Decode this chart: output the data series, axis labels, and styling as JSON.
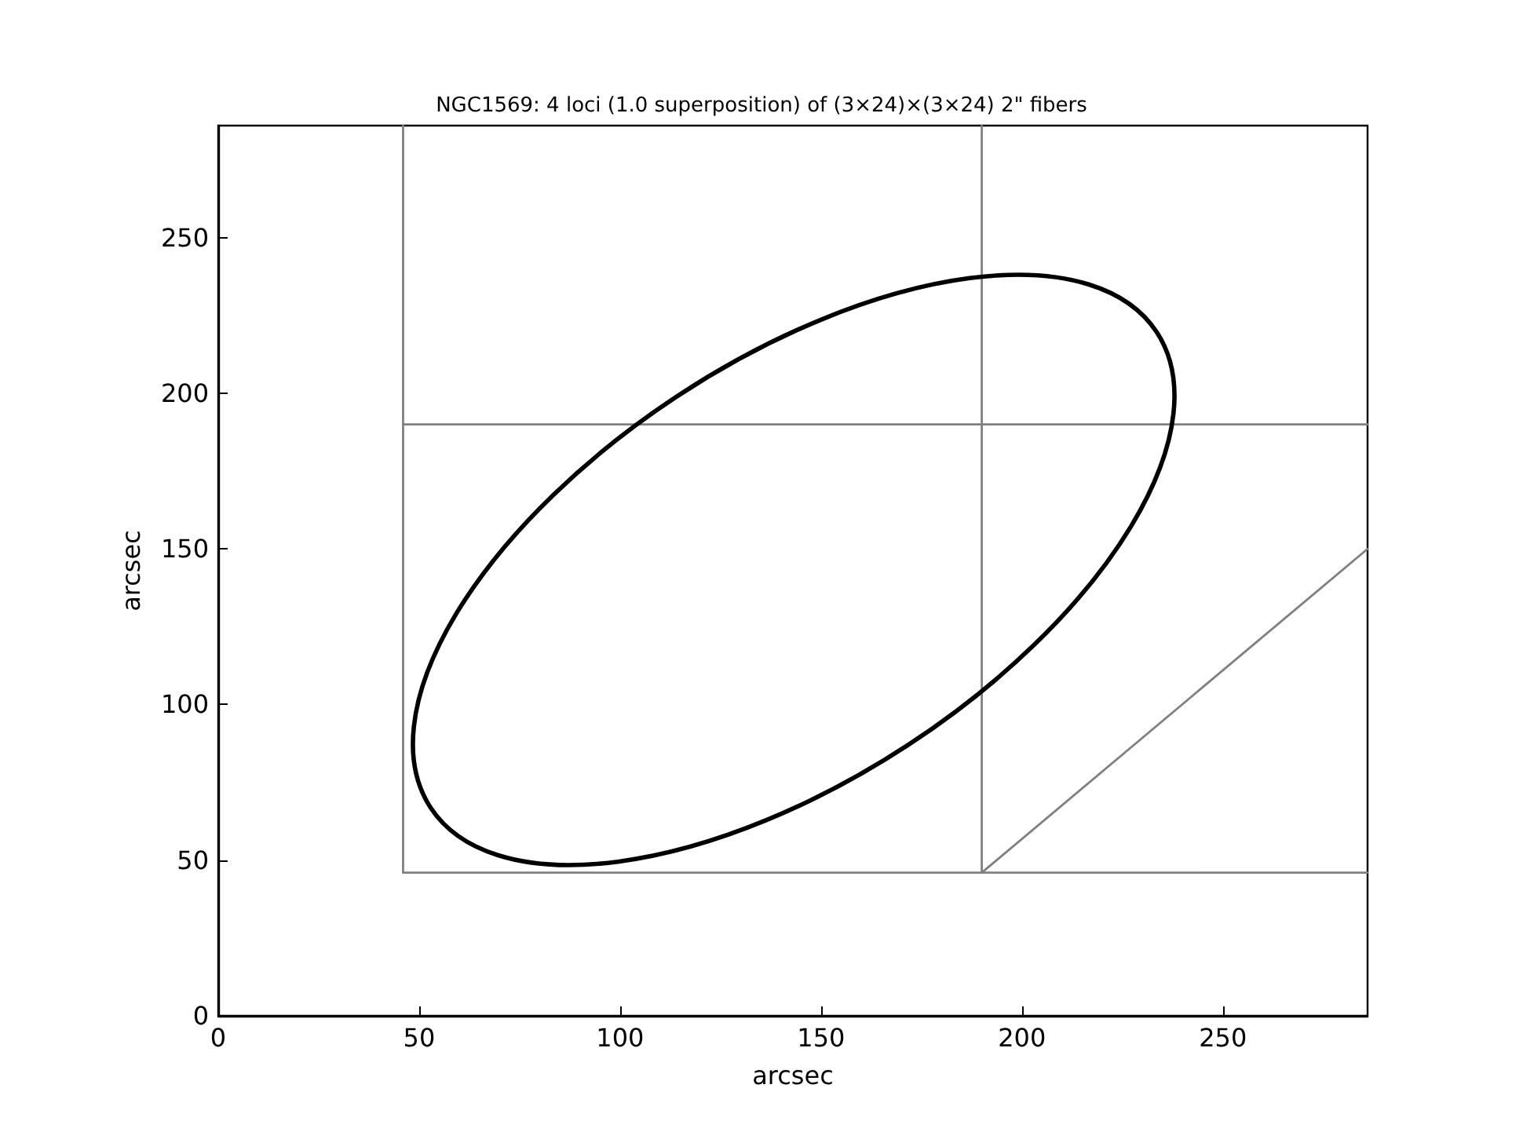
{
  "chart_data": {
    "type": "line",
    "title": "NGC1569: 4 loci (1.0 superposition) of (3×24)×(3×24) 2\" fibers",
    "xlabel": "arcsec",
    "ylabel": "arcsec",
    "xlim": [
      0,
      286
    ],
    "ylim": [
      0,
      286
    ],
    "xticks": [
      0,
      50,
      100,
      150,
      200,
      250
    ],
    "yticks": [
      0,
      50,
      100,
      150,
      200,
      250
    ],
    "grid": false,
    "marker": "none",
    "line_style": "solid",
    "series": [
      {
        "color": "#808080",
        "x": [
          46,
          46
        ],
        "values": [
          46,
          286
        ]
      },
      {
        "color": "#808080",
        "x": [
          190,
          190
        ],
        "values": [
          46,
          286
        ]
      },
      {
        "color": "#808080",
        "x": [
          46,
          286
        ],
        "values": [
          190,
          190
        ]
      },
      {
        "color": "#808080",
        "x": [
          46,
          286
        ],
        "values": [
          46,
          46
        ]
      },
      {
        "color": "#808080",
        "x": [
          190,
          286
        ],
        "values": [
          46,
          150
        ]
      }
    ]
  }
}
